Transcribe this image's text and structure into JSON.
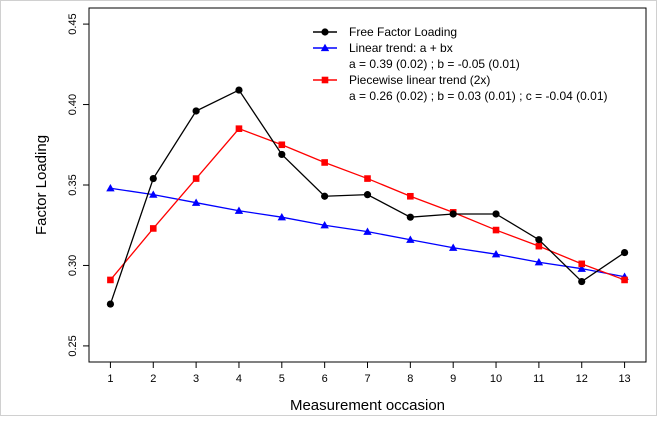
{
  "chart_data": {
    "type": "line",
    "xlabel": "Measurement occasion",
    "ylabel": "Factor Loading",
    "x": [
      1,
      2,
      3,
      4,
      5,
      6,
      7,
      8,
      9,
      10,
      11,
      12,
      13
    ],
    "xlim": [
      0.5,
      13.5
    ],
    "ylim": [
      0.24,
      0.46
    ],
    "y_ticks": [
      0.25,
      0.3,
      0.35,
      0.4,
      0.45
    ],
    "y_tick_labels": [
      "0.25",
      "0.30",
      "0.35",
      "0.40",
      "0.45"
    ],
    "grid": false,
    "legend_position": "top-right",
    "series": [
      {
        "name": "Free Factor Loading",
        "color": "#000000",
        "marker": "circle",
        "values": [
          0.276,
          0.354,
          0.396,
          0.409,
          0.369,
          0.343,
          0.344,
          0.33,
          0.332,
          0.332,
          0.316,
          0.29,
          0.308
        ]
      },
      {
        "name": "Linear trend: a + bx",
        "color": "#0000ff",
        "marker": "triangle",
        "values": [
          0.348,
          0.344,
          0.339,
          0.334,
          0.33,
          0.325,
          0.321,
          0.316,
          0.311,
          0.307,
          0.302,
          0.298,
          0.293
        ]
      },
      {
        "name": "Piecewise linear trend (2x)",
        "color": "#ff0000",
        "marker": "square",
        "values": [
          0.291,
          0.323,
          0.354,
          0.385,
          0.375,
          0.364,
          0.354,
          0.343,
          0.333,
          0.322,
          0.312,
          0.301,
          0.291
        ]
      }
    ],
    "legend": {
      "entries": [
        {
          "label": "Free Factor Loading",
          "detail": ""
        },
        {
          "label": "Linear trend: a + bx",
          "detail": "a = 0.39 (0.02) ; b = -0.05 (0.01)"
        },
        {
          "label": "Piecewise linear trend (2x)",
          "detail": "a = 0.26 (0.02) ; b = 0.03 (0.01) ; c = -0.04 (0.01)"
        }
      ]
    }
  }
}
